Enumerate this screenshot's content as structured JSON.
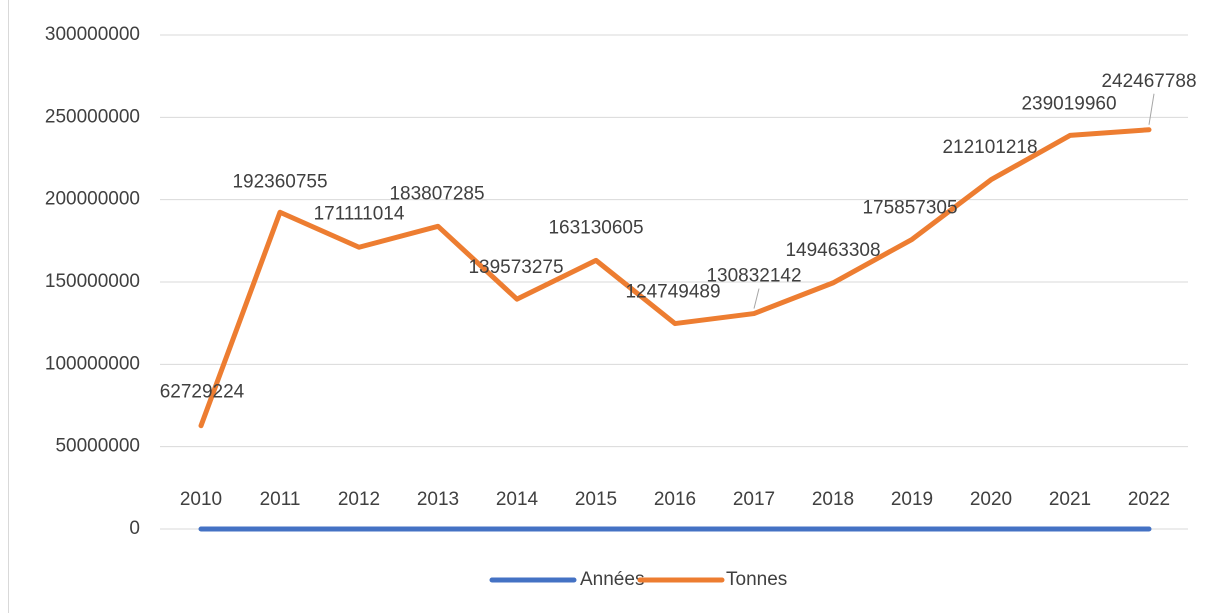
{
  "chart_data": {
    "type": "line",
    "categories": [
      "2010",
      "2011",
      "2012",
      "2013",
      "2014",
      "2015",
      "2016",
      "2017",
      "2018",
      "2019",
      "2020",
      "2021",
      "2022"
    ],
    "series": [
      {
        "name": "Années",
        "color": "#4472c4",
        "values": [
          2010,
          2011,
          2012,
          2013,
          2014,
          2015,
          2016,
          2017,
          2018,
          2019,
          2020,
          2021,
          2022
        ]
      },
      {
        "name": "Tonnes",
        "color": "#ed7d31",
        "values": [
          62729224,
          192360755,
          171111014,
          183807285,
          139573275,
          163130605,
          124749489,
          130832142,
          149463308,
          175857305,
          212101218,
          239019960,
          242467788
        ],
        "data_labels": true
      }
    ],
    "ylim": [
      0,
      300000000
    ],
    "yticks": [
      0,
      50000000,
      100000000,
      150000000,
      200000000,
      250000000,
      300000000
    ],
    "grid": true,
    "legend": "bottom"
  }
}
